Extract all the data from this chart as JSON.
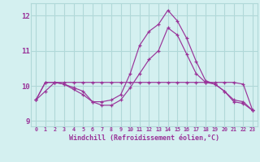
{
  "title": "",
  "xlabel": "Windchill (Refroidissement éolien,°C)",
  "ylabel": "",
  "background_color": "#d4f0f0",
  "grid_color": "#b0d8d8",
  "line_color": "#993399",
  "xlim": [
    -0.5,
    23.5
  ],
  "ylim": [
    8.85,
    12.35
  ],
  "yticks": [
    9,
    10,
    11,
    12
  ],
  "xticks": [
    0,
    1,
    2,
    3,
    4,
    5,
    6,
    7,
    8,
    9,
    10,
    11,
    12,
    13,
    14,
    15,
    16,
    17,
    18,
    19,
    20,
    21,
    22,
    23
  ],
  "series": [
    {
      "x": [
        0,
        1,
        2,
        3,
        4,
        5,
        6,
        7,
        8,
        9,
        10,
        11,
        12,
        13,
        14,
        15,
        16,
        17,
        18,
        19,
        20,
        21,
        22,
        23
      ],
      "y": [
        9.6,
        9.85,
        10.1,
        10.05,
        9.9,
        9.75,
        9.55,
        9.55,
        9.6,
        9.75,
        10.35,
        11.15,
        11.55,
        11.75,
        12.15,
        11.85,
        11.35,
        10.7,
        10.15,
        10.05,
        9.85,
        9.6,
        9.55,
        9.3
      ]
    },
    {
      "x": [
        0,
        1,
        2,
        3,
        4,
        5,
        6,
        7,
        8,
        9,
        10,
        11,
        12,
        13,
        14,
        15,
        16,
        17,
        18,
        19,
        20,
        21,
        22,
        23
      ],
      "y": [
        9.6,
        10.1,
        10.1,
        10.05,
        9.95,
        9.85,
        9.55,
        9.45,
        9.45,
        9.6,
        9.95,
        10.35,
        10.75,
        11.0,
        11.65,
        11.45,
        10.9,
        10.35,
        10.1,
        10.05,
        9.85,
        9.55,
        9.5,
        9.3
      ]
    },
    {
      "x": [
        0,
        1,
        2,
        3,
        4,
        5,
        6,
        7,
        8,
        9,
        10,
        11,
        12,
        13,
        14,
        15,
        16,
        17,
        18,
        19,
        20,
        21,
        22,
        23
      ],
      "y": [
        9.6,
        10.1,
        10.1,
        10.1,
        10.1,
        10.1,
        10.1,
        10.1,
        10.1,
        10.1,
        10.1,
        10.1,
        10.1,
        10.1,
        10.1,
        10.1,
        10.1,
        10.1,
        10.1,
        10.1,
        10.1,
        10.1,
        10.05,
        9.3
      ]
    }
  ]
}
